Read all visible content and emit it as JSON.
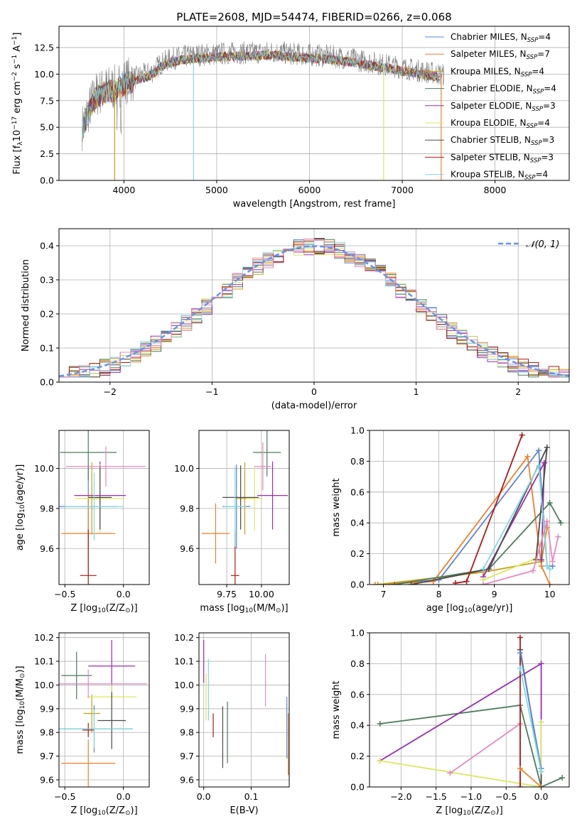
{
  "figure_title": "PLATE=2608, MJD=54474, FIBERID=0266, z=0.068",
  "colors": {
    "Chabrier MILES": "#5b84d8",
    "Salpeter MILES": "#f07f2a",
    "Kroupa MILES": "#c9a012",
    "Chabrier ELODIE": "#4b7c5b",
    "Salpeter ELODIE": "#9b2bb5",
    "Kroupa ELODIE": "#dbe85e",
    "Chabrier STELIB": "#4a4a4a",
    "Salpeter STELIB": "#b01818",
    "Kroupa STELIB": "#7fdbe1",
    "Kroupa STELIB (pink)": "#e68bbf",
    "data": "#808080",
    "gaussian": "#6495ed"
  },
  "chart_data": [
    {
      "id": "spectrum",
      "type": "line",
      "title": "PLATE=2608, MJD=54474, FIBERID=0266, z=0.068",
      "xlabel": "wavelength [Angstrom, rest frame]",
      "ylabel": "Flux [f",
      "ylabel_sub": "λ",
      "ylabel_rest": "10",
      "ylabel_exp": "−17",
      "ylabel_units": " erg cm",
      "ylabel_units_exp": "−2",
      "ylabel_units2": " s",
      "ylabel_units2_exp": "−1",
      "ylabel_units3": " A",
      "ylabel_units3_exp": "−1",
      "ylabel_end": "]",
      "xlim": [
        3300,
        8800
      ],
      "ylim": [
        0,
        14.5
      ],
      "xticks": [
        4000,
        5000,
        6000,
        7000,
        8000
      ],
      "yticks": [
        0.0,
        2.5,
        5.0,
        7.5,
        10.0,
        12.5
      ],
      "continuum": {
        "x": [
          3550,
          3650,
          3700,
          3800,
          3900,
          4000,
          4100,
          4200,
          4300,
          4400,
          4500,
          4600,
          4700,
          4800,
          5000,
          5200,
          5400,
          5600,
          5800,
          6000,
          6200,
          6400,
          6600,
          6800,
          7000,
          7200,
          7400,
          7600,
          7800,
          8000,
          8200,
          8400,
          8600,
          8800
        ],
        "y": [
          5.0,
          7.3,
          8.1,
          8.6,
          8.7,
          9.3,
          9.6,
          9.9,
          10.2,
          11.0,
          11.4,
          11.6,
          11.7,
          11.8,
          11.9,
          12.0,
          12.0,
          12.1,
          11.9,
          11.8,
          11.7,
          11.5,
          11.2,
          10.9,
          10.6,
          10.3,
          10.0,
          9.7,
          9.4,
          9.1,
          8.9,
          8.7,
          8.5,
          8.3
        ]
      },
      "legend": [
        {
          "label": "Chabrier MILES, N",
          "sub": "SSP",
          "val": "=4",
          "color": "#5b84d8"
        },
        {
          "label": "Salpeter MILES, N",
          "sub": "SSP",
          "val": "=7",
          "color": "#f07f2a"
        },
        {
          "label": "Kroupa MILES, N",
          "sub": "SSP",
          "val": "=4",
          "color": "#c9a012"
        },
        {
          "label": "Chabrier ELODIE, N",
          "sub": "SSP",
          "val": "=4",
          "color": "#4b7c5b"
        },
        {
          "label": "Salpeter ELODIE, N",
          "sub": "SSP",
          "val": "=3",
          "color": "#9b2bb5"
        },
        {
          "label": "Kroupa ELODIE, N",
          "sub": "SSP",
          "val": "=4",
          "color": "#dbe85e"
        },
        {
          "label": "Chabrier STELIB, N",
          "sub": "SSP",
          "val": "=3",
          "color": "#4a4a4a"
        },
        {
          "label": "Salpeter STELIB, N",
          "sub": "SSP",
          "val": "=3",
          "color": "#b01818"
        },
        {
          "label": "Kroupa STELIB, N",
          "sub": "SSP",
          "val": "=4",
          "color": "#7fdbe1"
        }
      ],
      "legend_position": "top-right"
    },
    {
      "id": "residuals",
      "type": "histogram",
      "xlabel": "(data-model)/error",
      "ylabel": "Normed distribution",
      "xlim": [
        -2.5,
        2.5
      ],
      "ylim": [
        0,
        0.45
      ],
      "xticks": [
        -2,
        -1,
        0,
        1,
        2
      ],
      "yticks": [
        0.0,
        0.1,
        0.2,
        0.3,
        0.4
      ],
      "legend_label": "𝒩(0, 1)",
      "legend_position": "top-right",
      "grid": true,
      "bin_width": 0.1
    },
    {
      "id": "age-vs-Z",
      "type": "errorbar",
      "xlabel": "Z [log",
      "xlabel_sub": "10",
      "xlabel_rest": "(Z/Z",
      "xlabel_sun": "⊙",
      "xlabel_end": ")]",
      "ylabel": "age  [log",
      "ylabel_sub": "10",
      "ylabel_rest": "(age/yr)]",
      "xlim": [
        -0.55,
        0.22
      ],
      "ylim": [
        9.42,
        10.19
      ],
      "xticks": [
        -0.5,
        0.0
      ],
      "yticks": [
        9.6,
        9.8,
        10.0
      ],
      "points": [
        {
          "series": "Chabrier MILES",
          "x": -0.3,
          "xerr": 0.25,
          "y": 9.81,
          "yerr": 0.21
        },
        {
          "series": "Salpeter MILES",
          "x": -0.3,
          "xerr": 0.23,
          "y": 9.675,
          "yerr": 0.2
        },
        {
          "series": "Kroupa MILES",
          "x": -0.27,
          "xerr": 0.07,
          "y": 9.85,
          "yerr": 0.18
        },
        {
          "series": "Chabrier ELODIE",
          "x": -0.3,
          "xerr": 0.24,
          "y": 10.08,
          "yerr": 0.14
        },
        {
          "series": "Salpeter ELODIE",
          "x": -0.2,
          "xerr": 0.22,
          "y": 9.865,
          "yerr": 0.17
        },
        {
          "series": "Kroupa ELODIE",
          "x": -0.2,
          "xerr": 0.21,
          "y": 9.85,
          "yerr": 0.17
        },
        {
          "series": "Chabrier STELIB",
          "x": -0.2,
          "xerr": 0.1,
          "y": 9.855,
          "yerr": 0.16
        },
        {
          "series": "Salpeter STELIB",
          "x": -0.3,
          "xerr": 0.07,
          "y": 9.465,
          "yerr": 0.23
        },
        {
          "series": "Kroupa STELIB",
          "x": -0.25,
          "xerr": 0.25,
          "y": 9.81,
          "yerr": 0.17
        },
        {
          "series": "Kroupa STELIB (pink)",
          "x": -0.15,
          "xerr": 0.34,
          "y": 10.01,
          "yerr": 0.1
        }
      ]
    },
    {
      "id": "age-vs-mass",
      "type": "errorbar",
      "xlabel": "mass [log",
      "xlabel_sub": "10",
      "xlabel_rest": "(M/M",
      "xlabel_sun": "⊙",
      "xlabel_end": ")]",
      "xlim": [
        9.55,
        10.2
      ],
      "ylim": [
        9.42,
        10.19
      ],
      "xticks": [
        9.75,
        10.0
      ],
      "yticks": [
        9.6,
        9.8,
        10.0
      ],
      "points": [
        {
          "series": "Chabrier MILES",
          "x": 9.82,
          "xerr": 0.1,
          "y": 9.81,
          "yerr": 0.21
        },
        {
          "series": "Salpeter MILES",
          "x": 9.67,
          "xerr": 0.1,
          "y": 9.675,
          "yerr": 0.15
        },
        {
          "series": "Kroupa MILES",
          "x": 9.88,
          "xerr": 0.07,
          "y": 9.85,
          "yerr": 0.18
        },
        {
          "series": "Chabrier ELODIE",
          "x": 10.04,
          "xerr": 0.1,
          "y": 10.08,
          "yerr": 0.12
        },
        {
          "series": "Salpeter ELODIE",
          "x": 10.08,
          "xerr": 0.11,
          "y": 9.865,
          "yerr": 0.17
        },
        {
          "series": "Kroupa ELODIE",
          "x": 9.95,
          "xerr": 0.06,
          "y": 9.85,
          "yerr": 0.16
        },
        {
          "series": "Chabrier STELIB",
          "x": 9.85,
          "xerr": 0.13,
          "y": 9.855,
          "yerr": 0.16
        },
        {
          "series": "Salpeter STELIB",
          "x": 9.81,
          "xerr": 0.03,
          "y": 9.465,
          "yerr": 0.22
        },
        {
          "series": "Kroupa STELIB",
          "x": 9.81,
          "xerr": 0.08,
          "y": 9.81,
          "yerr": 0.2
        },
        {
          "series": "Kroupa STELIB (pink)",
          "x": 10.01,
          "xerr": 0.06,
          "y": 10.01,
          "yerr": 0.12
        }
      ]
    },
    {
      "id": "massweight-vs-age",
      "type": "line",
      "xlabel": "age  [log",
      "xlabel_sub": "10",
      "xlabel_rest": "(age/yr)]",
      "ylabel": "mass weight",
      "xlim": [
        6.75,
        10.35
      ],
      "ylim": [
        0,
        1.0
      ],
      "xticks": [
        7,
        8,
        9,
        10
      ],
      "yticks": [
        0.0,
        0.2,
        0.4,
        0.6,
        0.8,
        1.0
      ],
      "grid": true,
      "series": [
        {
          "name": "Chabrier MILES",
          "x": [
            6.9,
            8.0,
            9.8,
            9.95,
            10.05
          ],
          "y": [
            0.0,
            0.03,
            0.87,
            0.12,
            0.12
          ]
        },
        {
          "name": "Salpeter MILES",
          "x": [
            6.85,
            7.9,
            9.6,
            9.85,
            10.0
          ],
          "y": [
            0.0,
            0.02,
            0.83,
            0.12,
            0.0
          ]
        },
        {
          "name": "Kroupa MILES",
          "x": [
            6.9,
            8.8,
            9.85,
            9.95
          ],
          "y": [
            0.0,
            0.08,
            0.15,
            0.37
          ]
        },
        {
          "name": "Chabrier ELODIE",
          "x": [
            7.2,
            8.9,
            10.0,
            10.2
          ],
          "y": [
            0.0,
            0.1,
            0.53,
            0.4
          ]
        },
        {
          "name": "Salpeter ELODIE",
          "x": [
            8.8,
            9.9,
            9.85
          ],
          "y": [
            0.05,
            0.79,
            0.16
          ]
        },
        {
          "name": "Kroupa ELODIE",
          "x": [
            8.8,
            9.75,
            9.95
          ],
          "y": [
            0.03,
            0.17,
            0.41
          ]
        },
        {
          "name": "Chabrier STELIB",
          "x": [
            7.5,
            8.9,
            9.95,
            9.75
          ],
          "y": [
            0.0,
            0.1,
            0.89,
            0.16
          ]
        },
        {
          "name": "Salpeter STELIB",
          "x": [
            8.3,
            8.5,
            9.5
          ],
          "y": [
            0.01,
            0.02,
            0.97
          ]
        },
        {
          "name": "Kroupa STELIB",
          "x": [
            8.8,
            9.8,
            9.95,
            10.0
          ],
          "y": [
            0.1,
            0.77,
            0.12,
            0.1
          ]
        },
        {
          "name": "Kroupa STELIB (pink)",
          "x": [
            8.8,
            9.7,
            9.95,
            10.05,
            10.15
          ],
          "y": [
            0.0,
            0.09,
            0.41,
            0.15,
            0.31
          ]
        }
      ]
    },
    {
      "id": "mass-vs-Z",
      "type": "errorbar",
      "xlabel": "Z [log",
      "xlabel_sub": "10",
      "xlabel_rest": "(Z/Z",
      "xlabel_sun": "⊙",
      "xlabel_end": ")]",
      "ylabel": "mass [log",
      "ylabel_sub": "10",
      "ylabel_rest": "(M/M",
      "ylabel_sun": "⊙",
      "ylabel_end": ")]",
      "xlim": [
        -0.55,
        0.22
      ],
      "ylim": [
        9.57,
        10.22
      ],
      "xticks": [
        -0.5,
        0.0
      ],
      "yticks": [
        9.6,
        9.7,
        9.8,
        9.9,
        10.0,
        10.1,
        10.2
      ],
      "points": [
        {
          "series": "Chabrier MILES",
          "x": -0.25,
          "xerr": 0.33,
          "y": 9.815,
          "yerr": 0.1
        },
        {
          "series": "Salpeter MILES",
          "x": -0.3,
          "xerr": 0.23,
          "y": 9.67,
          "yerr": 0.1
        },
        {
          "series": "Kroupa MILES",
          "x": -0.27,
          "xerr": 0.07,
          "y": 9.88,
          "yerr": 0.08
        },
        {
          "series": "Chabrier ELODIE",
          "x": -0.4,
          "xerr": 0.13,
          "y": 10.04,
          "yerr": 0.1
        },
        {
          "series": "Salpeter ELODIE",
          "x": -0.1,
          "xerr": 0.2,
          "y": 10.08,
          "yerr": 0.11
        },
        {
          "series": "Kroupa ELODIE",
          "x": -0.1,
          "xerr": 0.21,
          "y": 9.95,
          "yerr": 0.05
        },
        {
          "series": "Chabrier STELIB",
          "x": -0.1,
          "xerr": 0.12,
          "y": 9.85,
          "yerr": 0.12
        },
        {
          "series": "Salpeter STELIB",
          "x": -0.3,
          "xerr": 0.05,
          "y": 9.81,
          "yerr": 0.03
        },
        {
          "series": "Kroupa STELIB",
          "x": -0.25,
          "xerr": 0.33,
          "y": 9.815,
          "yerr": 0.08
        },
        {
          "series": "Kroupa STELIB (pink)",
          "x": -0.3,
          "xerr": 0.5,
          "y": 10.005,
          "yerr": 0.06
        }
      ]
    },
    {
      "id": "mass-vs-ebv",
      "type": "errorbar",
      "xlabel": "E(B-V)",
      "xlim": [
        -0.01,
        0.18
      ],
      "ylim": [
        9.57,
        10.22
      ],
      "xticks": [
        0.0,
        0.1
      ],
      "yticks": [
        9.6,
        9.7,
        9.8,
        9.9,
        10.0,
        10.1,
        10.2
      ],
      "points": [
        {
          "series": "Chabrier MILES",
          "x": 0.175,
          "xerr": 0.0,
          "y": 9.82,
          "yerr": 0.13
        },
        {
          "series": "Salpeter MILES",
          "x": 0.178,
          "xerr": 0.0,
          "y": 9.75,
          "yerr": 0.13
        },
        {
          "series": "Chabrier ELODIE",
          "x": 0.05,
          "xerr": 0.0,
          "y": 9.8,
          "yerr": 0.13
        },
        {
          "series": "Salpeter ELODIE",
          "x": 0.0,
          "xerr": 0.0,
          "y": 10.1,
          "yerr": 0.09
        },
        {
          "series": "Kroupa ELODIE",
          "x": 0.005,
          "xerr": 0.0,
          "y": 9.95,
          "yerr": 0.1
        },
        {
          "series": "Chabrier STELIB",
          "x": 0.04,
          "xerr": 0.0,
          "y": 9.78,
          "yerr": 0.13
        },
        {
          "series": "Salpeter STELIB",
          "x": 0.02,
          "xerr": 0.0,
          "y": 9.83,
          "yerr": 0.05
        },
        {
          "series": "Kroupa STELIB",
          "x": 0.01,
          "xerr": 0.0,
          "y": 9.98,
          "yerr": 0.13
        },
        {
          "series": "Kroupa STELIB (pink)",
          "x": 0.13,
          "xerr": 0.0,
          "y": 10.02,
          "yerr": 0.11
        }
      ]
    },
    {
      "id": "massweight-vs-Z",
      "type": "line",
      "xlabel": "Z [log",
      "xlabel_sub": "10",
      "xlabel_rest": "(Z/Z",
      "xlabel_sun": "⊙",
      "xlabel_end": ")]",
      "ylabel": "mass weight",
      "xlim": [
        -2.45,
        0.4
      ],
      "ylim": [
        0,
        1.0
      ],
      "xticks": [
        -2.0,
        -1.5,
        -1.0,
        -0.5,
        0.0
      ],
      "yticks": [
        0.0,
        0.2,
        0.4,
        0.6,
        0.8,
        1.0
      ],
      "grid": true,
      "series": [
        {
          "name": "Chabrier ELODIE",
          "x": [
            -2.3,
            -0.3,
            0.0,
            0.3
          ],
          "y": [
            0.41,
            0.53,
            0.0,
            0.06
          ]
        },
        {
          "name": "Salpeter ELODIE",
          "x": [
            -2.3,
            0.0,
            0.0
          ],
          "y": [
            0.17,
            0.8,
            0.0
          ]
        },
        {
          "name": "Kroupa ELODIE",
          "x": [
            -2.3,
            0.0,
            0.0
          ],
          "y": [
            0.17,
            0.0,
            0.42
          ]
        },
        {
          "name": "Kroupa STELIB (pink)",
          "x": [
            -1.3,
            -0.3,
            -0.3
          ],
          "y": [
            0.09,
            0.41,
            0.0
          ]
        },
        {
          "name": "Chabrier STELIB",
          "x": [
            -0.3,
            0.0,
            0.0
          ],
          "y": [
            0.89,
            0.1,
            0.0
          ]
        },
        {
          "name": "Salpeter STELIB",
          "x": [
            -0.3,
            -0.3
          ],
          "y": [
            0.0,
            0.97
          ]
        },
        {
          "name": "Chabrier MILES",
          "x": [
            -0.3,
            0.0
          ],
          "y": [
            0.87,
            0.12
          ]
        },
        {
          "name": "Salpeter MILES",
          "x": [
            -0.3,
            0.0
          ],
          "y": [
            0.12,
            0.0
          ]
        },
        {
          "name": "Kroupa STELIB",
          "x": [
            -0.3,
            0.0
          ],
          "y": [
            0.77,
            0.1
          ]
        }
      ]
    }
  ]
}
